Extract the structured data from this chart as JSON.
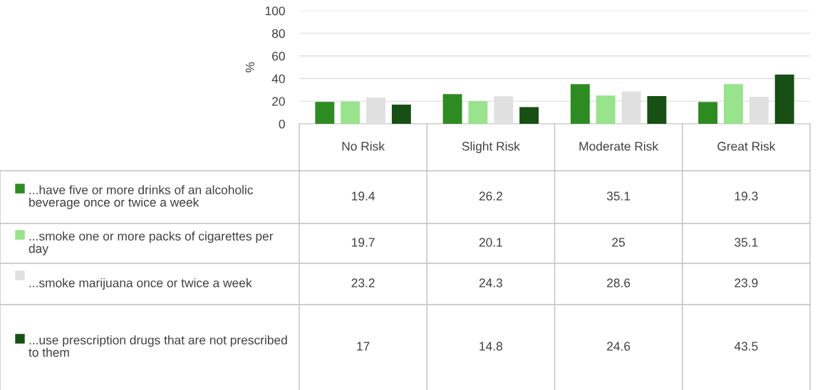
{
  "chart_data": {
    "type": "bar",
    "ylabel": "%",
    "categories": [
      "No Risk",
      "Slight Risk",
      "Moderate Risk",
      "Great Risk"
    ],
    "series": [
      {
        "name": "...have five or more drinks of an alcoholic beverage once or twice a week",
        "color": "#2e8b22",
        "values": [
          19.4,
          26.2,
          35.1,
          19.3
        ]
      },
      {
        "name": "...smoke one or more packs of cigarettes per day",
        "color": "#98e38c",
        "values": [
          19.7,
          20.1,
          25,
          35.1
        ]
      },
      {
        "name": "...smoke marijuana once or twice a week",
        "color": "#e0e0e0",
        "values": [
          23.2,
          24.3,
          28.6,
          23.9
        ]
      },
      {
        "name": "...use prescription drugs that are not prescribed to them",
        "color": "#174f14",
        "values": [
          17,
          14.8,
          24.6,
          43.5
        ]
      }
    ],
    "ylim": [
      0,
      100
    ],
    "yticks": [
      0,
      20,
      40,
      60,
      80,
      100
    ],
    "grid": "y",
    "legend": "bottom",
    "data_labels": true
  }
}
